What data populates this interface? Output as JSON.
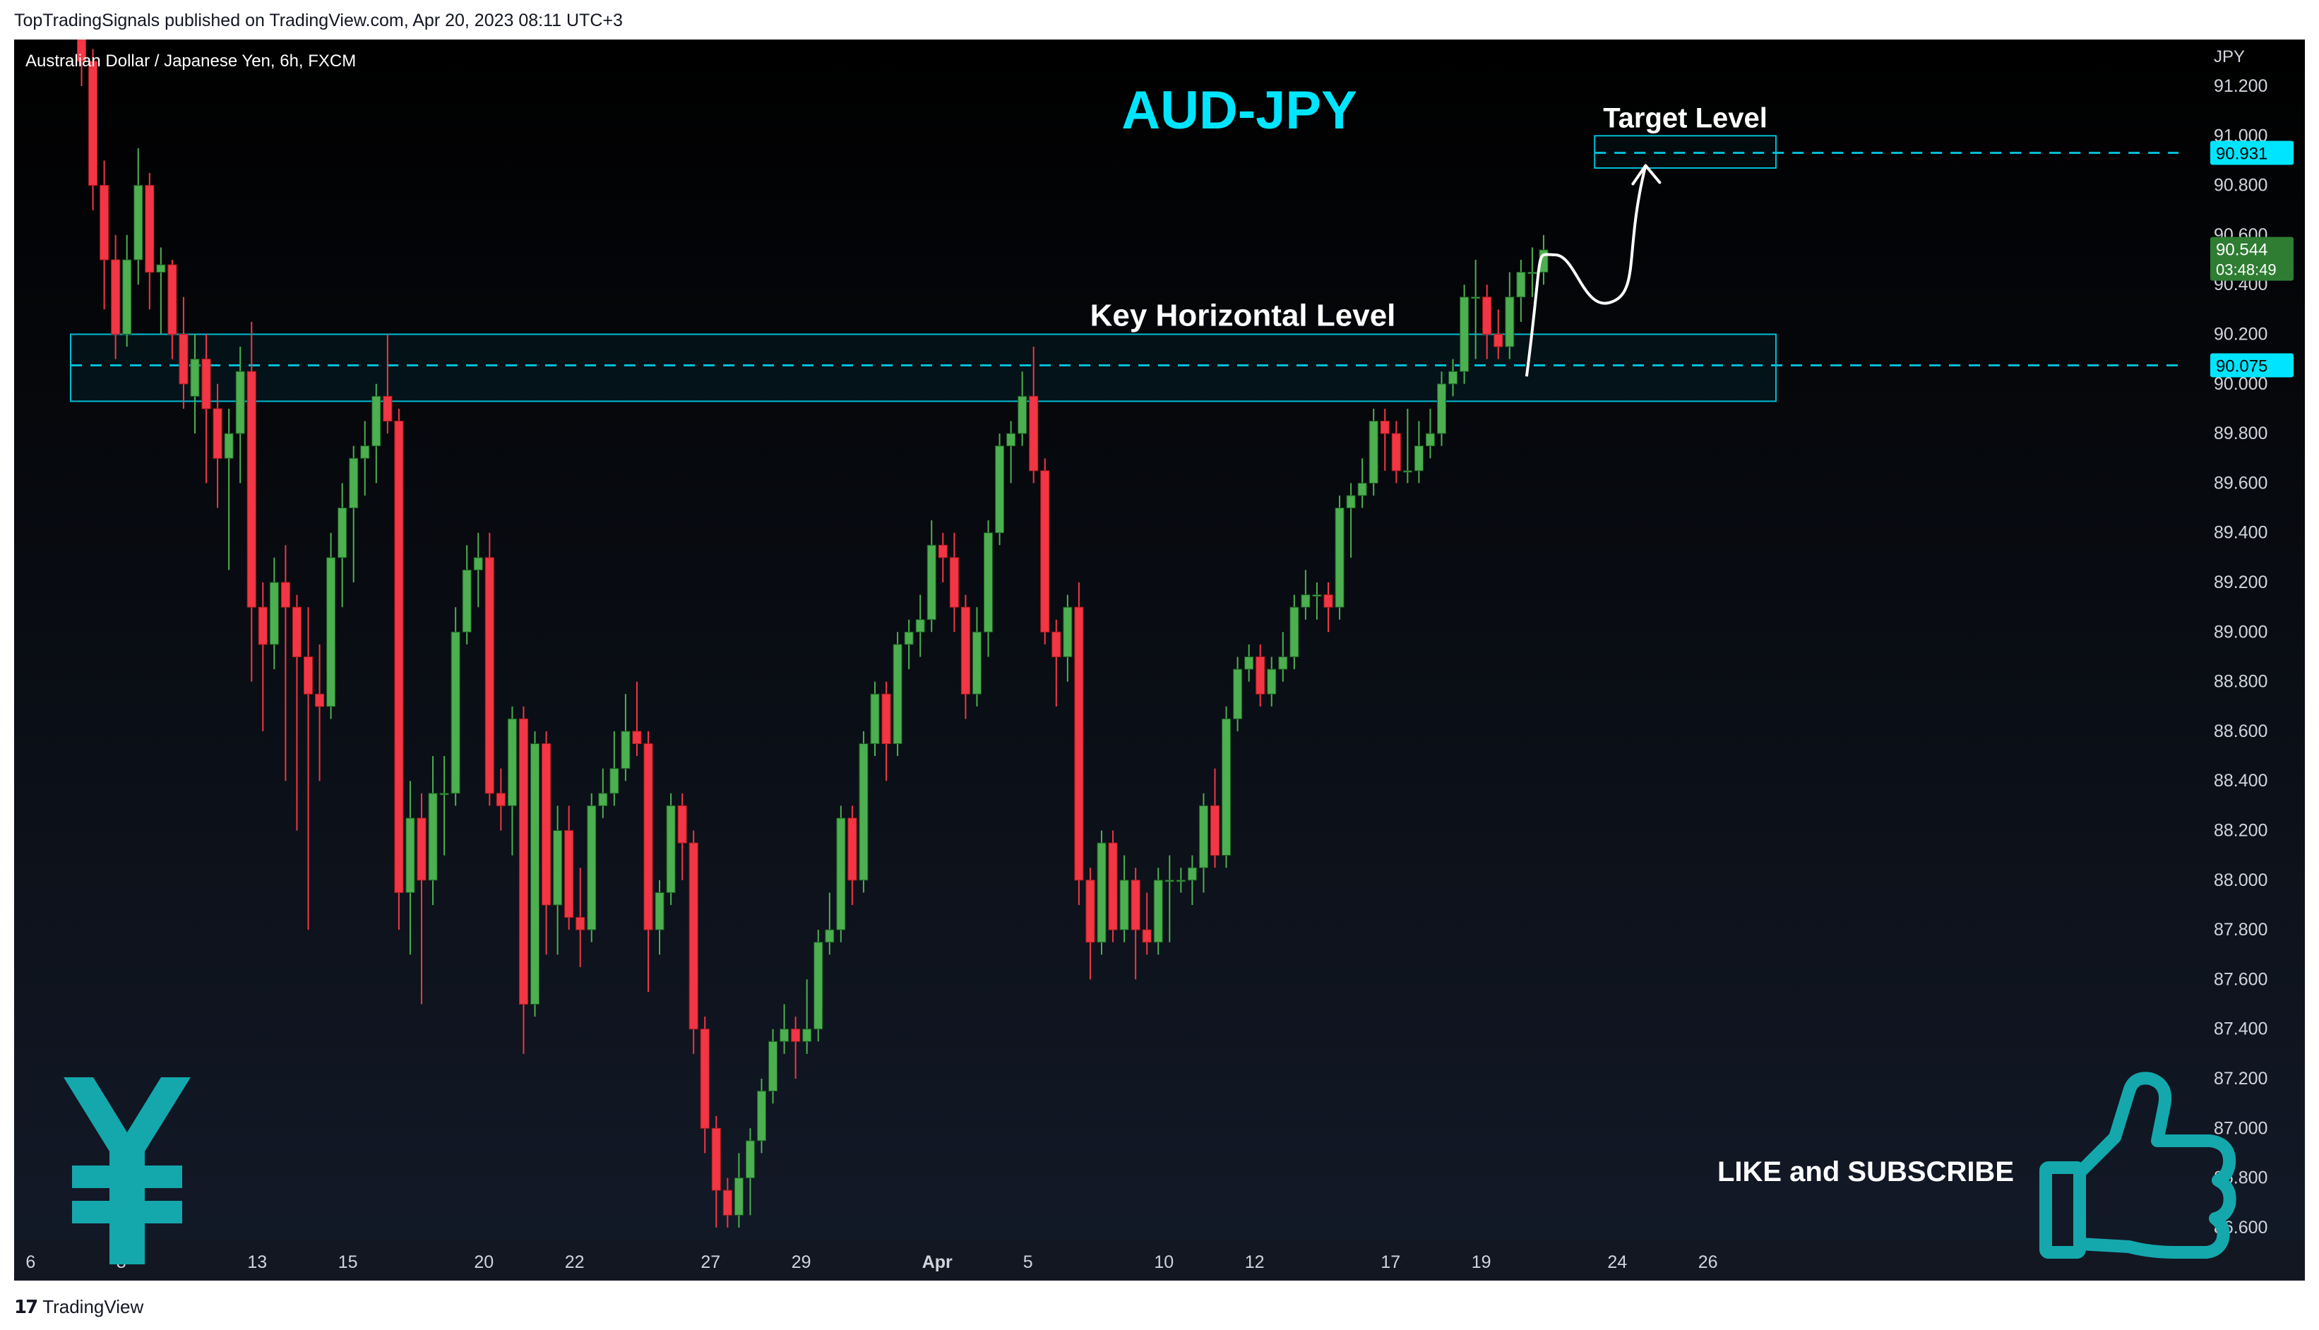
{
  "header": {
    "published": "TopTradingSignals published on TradingView.com, Apr 20, 2023 08:11 UTC+3"
  },
  "footer": {
    "logo_mark": "17",
    "logo_text": "TradingView"
  },
  "chart_data": {
    "type": "candlestick",
    "instrument": "Australian Dollar / Japanese Yen, 6h, FXCM",
    "title": "AUD-JPY",
    "currency": "JPY",
    "ylim": [
      86.5,
      91.3
    ],
    "y_ticks": [
      "91.200",
      "91.000",
      "90.800",
      "90.600",
      "90.400",
      "90.200",
      "90.000",
      "89.800",
      "89.600",
      "89.400",
      "89.200",
      "89.000",
      "88.800",
      "88.600",
      "88.400",
      "88.200",
      "88.000",
      "87.800",
      "87.600",
      "87.400",
      "87.200",
      "87.000",
      "86.800",
      "86.600"
    ],
    "x_ticks": [
      {
        "label": "6",
        "index": -4.5
      },
      {
        "label": "8",
        "index": 3.5
      },
      {
        "label": "13",
        "index": 15.5
      },
      {
        "label": "15",
        "index": 23.5
      },
      {
        "label": "20",
        "index": 35.5
      },
      {
        "label": "22",
        "index": 43.5
      },
      {
        "label": "27",
        "index": 55.5
      },
      {
        "label": "29",
        "index": 63.5
      },
      {
        "label": "Apr",
        "index": 75.5
      },
      {
        "label": "5",
        "index": 83.5
      },
      {
        "label": "10",
        "index": 95.5
      },
      {
        "label": "12",
        "index": 103.5
      },
      {
        "label": "17",
        "index": 115.5
      },
      {
        "label": "19",
        "index": 123.5
      },
      {
        "label": "24",
        "index": 135.5
      },
      {
        "label": "26",
        "index": 143.5
      }
    ],
    "candles": [
      [
        91.55,
        91.3,
        91.58,
        91.2
      ],
      [
        91.3,
        90.8,
        91.35,
        90.7
      ],
      [
        90.8,
        90.5,
        90.9,
        90.3
      ],
      [
        90.5,
        90.2,
        90.6,
        90.1
      ],
      [
        90.2,
        90.5,
        90.6,
        90.15
      ],
      [
        90.5,
        90.8,
        90.95,
        90.4
      ],
      [
        90.8,
        90.45,
        90.85,
        90.3
      ],
      [
        90.45,
        90.48,
        90.55,
        90.2
      ],
      [
        90.48,
        90.2,
        90.5,
        90.1
      ],
      [
        90.2,
        90.0,
        90.35,
        89.9
      ],
      [
        89.95,
        90.1,
        90.2,
        89.8
      ],
      [
        90.1,
        89.9,
        90.2,
        89.6
      ],
      [
        89.9,
        89.7,
        90.0,
        89.5
      ],
      [
        89.7,
        89.8,
        89.9,
        89.25
      ],
      [
        89.8,
        90.05,
        90.15,
        89.6
      ],
      [
        90.05,
        89.1,
        90.25,
        88.8
      ],
      [
        89.1,
        88.95,
        89.2,
        88.6
      ],
      [
        88.95,
        89.2,
        89.3,
        88.85
      ],
      [
        89.2,
        89.1,
        89.35,
        88.4
      ],
      [
        89.1,
        88.9,
        89.15,
        88.2
      ],
      [
        88.9,
        88.75,
        89.1,
        87.8
      ],
      [
        88.75,
        88.7,
        88.95,
        88.4
      ],
      [
        88.7,
        89.3,
        89.4,
        88.65
      ],
      [
        89.3,
        89.5,
        89.6,
        89.1
      ],
      [
        89.5,
        89.7,
        89.75,
        89.2
      ],
      [
        89.7,
        89.75,
        89.85,
        89.55
      ],
      [
        89.75,
        89.95,
        90.0,
        89.6
      ],
      [
        89.95,
        89.85,
        90.2,
        89.8
      ],
      [
        89.85,
        87.95,
        89.9,
        87.8
      ],
      [
        87.95,
        88.25,
        88.4,
        87.7
      ],
      [
        88.25,
        88.0,
        88.35,
        87.5
      ],
      [
        88.0,
        88.35,
        88.5,
        87.9
      ],
      [
        88.35,
        88.35,
        88.5,
        88.1
      ],
      [
        88.35,
        89.0,
        89.1,
        88.3
      ],
      [
        89.0,
        89.25,
        89.35,
        88.95
      ],
      [
        89.25,
        89.3,
        89.4,
        89.1
      ],
      [
        89.3,
        88.35,
        89.4,
        88.3
      ],
      [
        88.35,
        88.3,
        88.45,
        88.2
      ],
      [
        88.3,
        88.65,
        88.7,
        88.1
      ],
      [
        88.65,
        87.5,
        88.7,
        87.3
      ],
      [
        87.5,
        88.55,
        88.6,
        87.45
      ],
      [
        88.55,
        87.9,
        88.6,
        87.7
      ],
      [
        87.9,
        88.2,
        88.3,
        87.7
      ],
      [
        88.2,
        87.85,
        88.3,
        87.8
      ],
      [
        87.85,
        87.8,
        88.05,
        87.65
      ],
      [
        87.8,
        88.3,
        88.35,
        87.75
      ],
      [
        88.3,
        88.35,
        88.45,
        88.25
      ],
      [
        88.35,
        88.45,
        88.6,
        88.3
      ],
      [
        88.45,
        88.6,
        88.75,
        88.4
      ],
      [
        88.6,
        88.55,
        88.8,
        88.5
      ],
      [
        88.55,
        87.8,
        88.6,
        87.55
      ],
      [
        87.8,
        87.95,
        88.0,
        87.7
      ],
      [
        87.95,
        88.3,
        88.35,
        87.9
      ],
      [
        88.3,
        88.15,
        88.35,
        88.0
      ],
      [
        88.15,
        87.4,
        88.2,
        87.3
      ],
      [
        87.4,
        87.0,
        87.45,
        86.9
      ],
      [
        87.0,
        86.75,
        87.05,
        86.6
      ],
      [
        86.75,
        86.65,
        86.8,
        86.6
      ],
      [
        86.65,
        86.8,
        86.9,
        86.6
      ],
      [
        86.8,
        86.95,
        87.0,
        86.65
      ],
      [
        86.95,
        87.15,
        87.2,
        86.9
      ],
      [
        87.15,
        87.35,
        87.4,
        87.1
      ],
      [
        87.35,
        87.4,
        87.5,
        87.3
      ],
      [
        87.4,
        87.35,
        87.45,
        87.2
      ],
      [
        87.35,
        87.4,
        87.6,
        87.3
      ],
      [
        87.4,
        87.75,
        87.8,
        87.35
      ],
      [
        87.75,
        87.8,
        87.95,
        87.7
      ],
      [
        87.8,
        88.25,
        88.3,
        87.75
      ],
      [
        88.25,
        88.0,
        88.3,
        87.9
      ],
      [
        88.0,
        88.55,
        88.6,
        87.95
      ],
      [
        88.55,
        88.75,
        88.8,
        88.5
      ],
      [
        88.75,
        88.55,
        88.8,
        88.4
      ],
      [
        88.55,
        88.95,
        89.0,
        88.5
      ],
      [
        88.95,
        89.0,
        89.05,
        88.85
      ],
      [
        89.0,
        89.05,
        89.15,
        88.9
      ],
      [
        89.05,
        89.35,
        89.45,
        89.0
      ],
      [
        89.35,
        89.3,
        89.4,
        89.2
      ],
      [
        89.3,
        89.1,
        89.4,
        89.0
      ],
      [
        89.1,
        88.75,
        89.15,
        88.65
      ],
      [
        88.75,
        89.0,
        89.1,
        88.7
      ],
      [
        89.0,
        89.4,
        89.45,
        88.9
      ],
      [
        89.4,
        89.75,
        89.8,
        89.35
      ],
      [
        89.75,
        89.8,
        89.85,
        89.6
      ],
      [
        89.8,
        89.95,
        90.05,
        89.75
      ],
      [
        89.95,
        89.65,
        90.15,
        89.6
      ],
      [
        89.65,
        89.0,
        89.7,
        88.95
      ],
      [
        89.0,
        88.9,
        89.05,
        88.7
      ],
      [
        88.9,
        89.1,
        89.15,
        88.8
      ],
      [
        89.1,
        88.0,
        89.2,
        87.9
      ],
      [
        88.0,
        87.75,
        88.05,
        87.6
      ],
      [
        87.75,
        88.15,
        88.2,
        87.7
      ],
      [
        88.15,
        87.8,
        88.2,
        87.75
      ],
      [
        87.8,
        88.0,
        88.1,
        87.75
      ],
      [
        88.0,
        87.8,
        88.05,
        87.6
      ],
      [
        87.8,
        87.75,
        87.95,
        87.7
      ],
      [
        87.75,
        88.0,
        88.05,
        87.7
      ],
      [
        88.0,
        88.0,
        88.1,
        87.75
      ],
      [
        88.0,
        88.0,
        88.05,
        87.95
      ],
      [
        88.0,
        88.05,
        88.1,
        87.9
      ],
      [
        88.05,
        88.3,
        88.35,
        87.95
      ],
      [
        88.3,
        88.1,
        88.45,
        88.05
      ],
      [
        88.1,
        88.65,
        88.7,
        88.05
      ],
      [
        88.65,
        88.85,
        88.9,
        88.6
      ],
      [
        88.85,
        88.9,
        88.95,
        88.8
      ],
      [
        88.9,
        88.75,
        88.95,
        88.7
      ],
      [
        88.75,
        88.85,
        88.9,
        88.7
      ],
      [
        88.85,
        88.9,
        89.0,
        88.8
      ],
      [
        88.9,
        89.1,
        89.15,
        88.85
      ],
      [
        89.1,
        89.15,
        89.25,
        89.05
      ],
      [
        89.15,
        89.15,
        89.2,
        89.05
      ],
      [
        89.15,
        89.1,
        89.2,
        89.0
      ],
      [
        89.1,
        89.5,
        89.55,
        89.05
      ],
      [
        89.5,
        89.55,
        89.6,
        89.3
      ],
      [
        89.55,
        89.6,
        89.7,
        89.5
      ],
      [
        89.6,
        89.85,
        89.9,
        89.55
      ],
      [
        89.85,
        89.8,
        89.9,
        89.65
      ],
      [
        89.8,
        89.65,
        89.85,
        89.6
      ],
      [
        89.65,
        89.65,
        89.9,
        89.6
      ],
      [
        89.65,
        89.75,
        89.85,
        89.6
      ],
      [
        89.75,
        89.8,
        89.9,
        89.7
      ],
      [
        89.8,
        90.0,
        90.05,
        89.75
      ],
      [
        90.0,
        90.05,
        90.1,
        89.95
      ],
      [
        90.05,
        90.35,
        90.4,
        90.0
      ],
      [
        90.35,
        90.35,
        90.5,
        90.1
      ],
      [
        90.35,
        90.2,
        90.4,
        90.1
      ],
      [
        90.2,
        90.15,
        90.3,
        90.1
      ],
      [
        90.15,
        90.35,
        90.45,
        90.1
      ],
      [
        90.35,
        90.45,
        90.5,
        90.25
      ],
      [
        90.45,
        90.45,
        90.55,
        90.35
      ],
      [
        90.45,
        90.54,
        90.6,
        90.4
      ]
    ],
    "key_zone": {
      "label": "Key Horizontal Level",
      "top": 90.2,
      "bottom": 89.93,
      "level": 90.075,
      "level_label": "90.075",
      "end_index": 149.5
    },
    "target_zone": {
      "label": "Target Level",
      "top": 91.0,
      "bottom": 90.87,
      "level": 90.931,
      "level_label": "90.931",
      "start_index": 133.5,
      "end_index": 149.5
    },
    "projection_path": [
      [
        127.5,
        90.03
      ],
      [
        130.0,
        90.52
      ],
      [
        135.0,
        90.33
      ],
      [
        138.0,
        90.88
      ]
    ],
    "last_price": {
      "value": 90.544,
      "label": "90.544",
      "countdown": "03:48:49"
    },
    "annotations": {
      "cta": "LIKE and SUBSCRIBE",
      "currency_symbol": "¥"
    },
    "colors": {
      "background_top": "#000000",
      "background_bottom": "#131a28",
      "bull": "#4caf50",
      "bear": "#f23645",
      "zone_line": "#00bcd4",
      "title": "#00e5ff",
      "icon": "#14a8ad",
      "text": "#ffffff",
      "axis_text": "#d1d4dc"
    }
  }
}
